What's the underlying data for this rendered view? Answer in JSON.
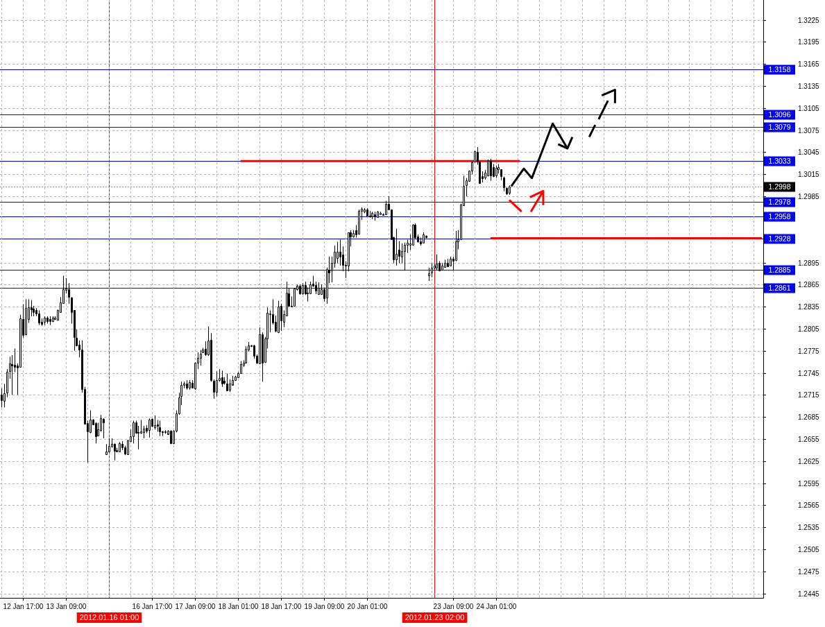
{
  "chart_data": {
    "type": "candlestick",
    "categories": [
      null,
      null,
      null,
      null,
      null,
      null,
      null,
      null,
      "12 Jan 17:00",
      null,
      null,
      null,
      null,
      null,
      null,
      null,
      null,
      null,
      null,
      null,
      null,
      null,
      null,
      null,
      "13 Jan 09:00",
      null,
      null,
      null,
      null,
      null,
      null,
      null,
      null,
      null,
      null,
      null,
      null,
      null,
      null,
      null,
      "2012.01.16 01:00",
      null,
      null,
      null,
      null,
      null,
      null,
      null,
      null,
      null,
      null,
      null,
      null,
      null,
      null,
      null,
      "16 Jan 17:00",
      null,
      null,
      null,
      null,
      null,
      null,
      null,
      null,
      null,
      null,
      null,
      null,
      null,
      null,
      null,
      "17 Jan 09:00",
      null,
      null,
      null,
      null,
      null,
      null,
      null,
      null,
      null,
      null,
      null,
      null,
      null,
      null,
      null,
      "18 Jan 01:00",
      null,
      null,
      null,
      null,
      null,
      null,
      null,
      null,
      null,
      null,
      null,
      null,
      null,
      null,
      null,
      "18 Jan 17:00",
      null,
      null,
      null,
      null,
      null,
      null,
      null,
      null,
      null,
      null,
      null,
      null,
      null,
      null,
      null,
      "19 Jan 09:00",
      null,
      null,
      null,
      null,
      null,
      null,
      null,
      null,
      null,
      null,
      null,
      null,
      null,
      null,
      null,
      "20 Jan 01:00",
      null,
      null,
      null,
      null,
      null,
      null,
      null,
      null,
      null,
      null,
      null,
      null,
      null,
      null,
      null,
      null,
      null,
      null,
      null,
      null,
      null,
      null,
      null,
      null,
      "2012.01.23 02:00",
      null,
      null,
      null,
      null,
      null,
      null,
      "23 Jan 09:00",
      null,
      null,
      null,
      null,
      null,
      null,
      null,
      null,
      null,
      null,
      null,
      null,
      null,
      null,
      null,
      "24 Jan 01:00",
      null,
      null,
      null,
      null,
      null,
      null,
      null,
      null,
      null,
      null,
      null,
      null,
      null,
      null,
      null,
      null,
      null,
      null,
      null,
      null,
      null,
      null,
      null,
      null,
      null,
      null,
      null,
      null,
      null,
      null,
      null,
      null,
      null,
      null,
      null,
      null,
      null,
      null,
      null,
      null,
      null,
      null,
      null,
      null,
      null,
      null,
      null,
      null,
      null,
      null,
      null,
      null,
      null,
      null,
      null,
      null,
      null,
      null,
      null,
      null,
      null,
      null,
      null,
      null,
      null,
      null,
      null,
      null,
      null,
      null,
      null,
      null,
      null,
      null,
      null,
      null,
      null,
      null,
      null,
      null,
      null,
      null,
      null,
      null,
      null,
      null,
      null,
      null,
      null,
      null,
      null,
      null,
      null,
      null,
      null,
      null,
      null,
      null,
      null
    ],
    "ohlc": [
      [
        1.2715,
        1.2724,
        1.2698,
        1.2708
      ],
      [
        1.2707,
        1.273,
        1.2698,
        1.2717
      ],
      [
        1.2718,
        1.275,
        1.2712,
        1.2746
      ],
      [
        1.2747,
        1.2767,
        1.2737,
        1.2758
      ],
      [
        1.2757,
        1.2769,
        1.2715,
        1.2755
      ],
      [
        1.2756,
        1.2778,
        1.2746,
        1.2753
      ],
      [
        1.2755,
        1.2758,
        1.2715,
        1.2752
      ],
      [
        1.2753,
        1.2824,
        1.2752,
        1.2819
      ],
      [
        1.2818,
        1.2838,
        1.2793,
        1.2796
      ],
      [
        1.2797,
        1.2845,
        1.2796,
        1.2833
      ],
      [
        1.2818,
        1.2845,
        1.2813,
        1.2834
      ],
      [
        1.2834,
        1.2844,
        1.2822,
        1.2831
      ],
      [
        1.2832,
        1.2836,
        1.2822,
        1.2828
      ],
      [
        1.283,
        1.2833,
        1.2822,
        1.2826
      ],
      [
        1.2826,
        1.283,
        1.281,
        1.2813
      ],
      [
        1.2814,
        1.2819,
        1.2809,
        1.2812
      ],
      [
        1.2814,
        1.2822,
        1.281,
        1.282
      ],
      [
        1.282,
        1.2822,
        1.2812,
        1.2815
      ],
      [
        1.2818,
        1.2822,
        1.281,
        1.2815
      ],
      [
        1.2815,
        1.2822,
        1.2814,
        1.282
      ],
      [
        1.2818,
        1.2822,
        1.2817,
        1.282
      ],
      [
        1.2817,
        1.2831,
        1.2816,
        1.283
      ],
      [
        1.2828,
        1.2848,
        1.2827,
        1.2841
      ],
      [
        1.284,
        1.2877,
        1.2839,
        1.2859
      ],
      [
        1.2858,
        1.2874,
        1.2853,
        1.286
      ],
      [
        1.2859,
        1.2867,
        1.2839,
        1.2848
      ],
      [
        1.2847,
        1.2848,
        1.2812,
        1.2828
      ],
      [
        1.283,
        1.283,
        1.2775,
        1.2794
      ],
      [
        1.2793,
        1.2804,
        1.2781,
        1.2782
      ],
      [
        1.2783,
        1.2789,
        1.2766,
        1.2777
      ],
      [
        1.2777,
        1.2789,
        1.2718,
        1.2723
      ],
      [
        1.2723,
        1.2726,
        1.2675,
        1.2676
      ],
      [
        1.2677,
        1.268,
        1.2623,
        1.2665
      ],
      [
        1.2664,
        1.2694,
        1.2663,
        1.2681
      ],
      [
        1.2681,
        1.2682,
        1.2674,
        1.2675
      ],
      [
        1.2677,
        1.2678,
        1.2649,
        1.2659
      ],
      [
        1.266,
        1.2677,
        1.2659,
        1.2668
      ],
      [
        1.2667,
        1.2688,
        1.2665,
        1.2683
      ],
      [
        1.2682,
        1.2683,
        1.2656,
        1.2678
      ],
      [
        1.2634,
        1.2648,
        1.2634,
        1.2638
      ],
      [
        1.2638,
        1.2656,
        1.2637,
        1.2646
      ],
      [
        1.2646,
        1.2656,
        1.2643,
        1.2648
      ],
      [
        1.2648,
        1.2649,
        1.2626,
        1.2639
      ],
      [
        1.264,
        1.2643,
        1.2637,
        1.2638
      ],
      [
        1.2638,
        1.2651,
        1.2637,
        1.2649
      ],
      [
        1.2648,
        1.2652,
        1.264,
        1.2644
      ],
      [
        1.2644,
        1.2646,
        1.2633,
        1.2635
      ],
      [
        1.2634,
        1.2654,
        1.2634,
        1.2653
      ],
      [
        1.2652,
        1.2668,
        1.2651,
        1.2659
      ],
      [
        1.2659,
        1.268,
        1.2649,
        1.2678
      ],
      [
        1.2678,
        1.268,
        1.2662,
        1.2663
      ],
      [
        1.2664,
        1.2673,
        1.2641,
        1.2663
      ],
      [
        1.2663,
        1.2681,
        1.2662,
        1.2665
      ],
      [
        1.2664,
        1.2673,
        1.2656,
        1.2669
      ],
      [
        1.267,
        1.2674,
        1.2663,
        1.2666
      ],
      [
        1.2667,
        1.2683,
        1.2657,
        1.2681
      ],
      [
        1.2682,
        1.2683,
        1.2671,
        1.2673
      ],
      [
        1.2671,
        1.2687,
        1.2668,
        1.2674
      ],
      [
        1.2675,
        1.2681,
        1.2665,
        1.2673
      ],
      [
        1.2671,
        1.268,
        1.2659,
        1.2665
      ],
      [
        1.2665,
        1.2666,
        1.2659,
        1.2664
      ],
      [
        1.2664,
        1.2667,
        1.2662,
        1.2665
      ],
      [
        1.2662,
        1.2667,
        1.2662,
        1.2666
      ],
      [
        1.2666,
        1.2667,
        1.2648,
        1.2649
      ],
      [
        1.2649,
        1.2667,
        1.2648,
        1.2666
      ],
      [
        1.2666,
        1.2694,
        1.2664,
        1.269
      ],
      [
        1.269,
        1.2718,
        1.2688,
        1.2712
      ],
      [
        1.2713,
        1.2733,
        1.2701,
        1.2729
      ],
      [
        1.2729,
        1.2733,
        1.2724,
        1.273
      ],
      [
        1.273,
        1.2735,
        1.2722,
        1.2725
      ],
      [
        1.2725,
        1.2735,
        1.2722,
        1.2732
      ],
      [
        1.2731,
        1.2735,
        1.2724,
        1.2725
      ],
      [
        1.2724,
        1.2759,
        1.2722,
        1.2759
      ],
      [
        1.2759,
        1.2773,
        1.275,
        1.2765
      ],
      [
        1.2765,
        1.2776,
        1.2755,
        1.2771
      ],
      [
        1.2773,
        1.2779,
        1.2772,
        1.2777
      ],
      [
        1.2778,
        1.2788,
        1.2768,
        1.277
      ],
      [
        1.277,
        1.2808,
        1.2768,
        1.2789
      ],
      [
        1.279,
        1.2799,
        1.2733,
        1.2735
      ],
      [
        1.2734,
        1.2736,
        1.271,
        1.2719
      ],
      [
        1.2719,
        1.2747,
        1.2713,
        1.2735
      ],
      [
        1.2735,
        1.275,
        1.2733,
        1.2738
      ],
      [
        1.2739,
        1.2748,
        1.2726,
        1.273
      ],
      [
        1.2734,
        1.2739,
        1.2729,
        1.2731
      ],
      [
        1.273,
        1.2744,
        1.272,
        1.2721
      ],
      [
        1.2722,
        1.2736,
        1.2719,
        1.273
      ],
      [
        1.2729,
        1.2741,
        1.2729,
        1.2735
      ],
      [
        1.2735,
        1.2741,
        1.2734,
        1.274
      ],
      [
        1.2739,
        1.2746,
        1.2738,
        1.2745
      ],
      [
        1.2745,
        1.2761,
        1.2744,
        1.2757
      ],
      [
        1.2756,
        1.2762,
        1.2753,
        1.2759
      ],
      [
        1.2759,
        1.2781,
        1.2759,
        1.2778
      ],
      [
        1.2777,
        1.2787,
        1.2774,
        1.2782
      ],
      [
        1.2781,
        1.2783,
        1.278,
        1.2782
      ],
      [
        1.2782,
        1.2783,
        1.2764,
        1.2768
      ],
      [
        1.2768,
        1.277,
        1.2757,
        1.2759
      ],
      [
        1.2758,
        1.2807,
        1.2757,
        1.2797
      ],
      [
        1.2797,
        1.28,
        1.2733,
        1.2759
      ],
      [
        1.276,
        1.2794,
        1.2759,
        1.2792
      ],
      [
        1.2792,
        1.2834,
        1.2778,
        1.2827
      ],
      [
        1.2825,
        1.283,
        1.28,
        1.2826
      ],
      [
        1.2825,
        1.2845,
        1.2811,
        1.2813
      ],
      [
        1.2814,
        1.2823,
        1.28,
        1.2802
      ],
      [
        1.28,
        1.2843,
        1.2799,
        1.2835
      ],
      [
        1.2836,
        1.2839,
        1.2802,
        1.2816
      ],
      [
        1.2814,
        1.283,
        1.2807,
        1.2825
      ],
      [
        1.2823,
        1.2869,
        1.2822,
        1.2854
      ],
      [
        1.2853,
        1.286,
        1.2835,
        1.2836
      ],
      [
        1.2836,
        1.2849,
        1.2834,
        1.2835
      ],
      [
        1.2836,
        1.286,
        1.2835,
        1.286
      ],
      [
        1.2859,
        1.2865,
        1.2857,
        1.2863
      ],
      [
        1.2863,
        1.2865,
        1.2851,
        1.2853
      ],
      [
        1.2853,
        1.2867,
        1.2851,
        1.2864
      ],
      [
        1.2864,
        1.2869,
        1.2851,
        1.2853
      ],
      [
        1.2854,
        1.2861,
        1.2842,
        1.2853
      ],
      [
        1.2853,
        1.2869,
        1.2852,
        1.2865
      ],
      [
        1.2866,
        1.2877,
        1.2862,
        1.2863
      ],
      [
        1.2864,
        1.2869,
        1.2852,
        1.2857
      ],
      [
        1.2852,
        1.2868,
        1.2851,
        1.2861
      ],
      [
        1.2852,
        1.2865,
        1.2851,
        1.2859
      ],
      [
        1.2859,
        1.2861,
        1.2842,
        1.2846
      ],
      [
        1.2847,
        1.2888,
        1.2839,
        1.2886
      ],
      [
        1.2885,
        1.2903,
        1.2867,
        1.2881
      ],
      [
        1.2884,
        1.2903,
        1.2868,
        1.2895
      ],
      [
        1.2895,
        1.2918,
        1.2888,
        1.291
      ],
      [
        1.2901,
        1.2923,
        1.2894,
        1.291
      ],
      [
        1.291,
        1.2926,
        1.2891,
        1.2903
      ],
      [
        1.2906,
        1.2917,
        1.2883,
        1.2892
      ],
      [
        1.2892,
        1.2897,
        1.2874,
        1.2891
      ],
      [
        1.2891,
        1.2936,
        1.2883,
        1.2936
      ],
      [
        1.2936,
        1.2939,
        1.2917,
        1.293
      ],
      [
        1.293,
        1.2939,
        1.2929,
        1.2935
      ],
      [
        1.2939,
        1.2946,
        1.2929,
        1.2933
      ],
      [
        1.2934,
        1.2967,
        1.2933,
        1.2965
      ],
      [
        1.2965,
        1.297,
        1.2953,
        1.2968
      ],
      [
        1.2964,
        1.2969,
        1.2962,
        1.2967
      ],
      [
        1.2967,
        1.2969,
        1.2958,
        1.2959
      ],
      [
        1.2959,
        1.2965,
        1.2956,
        1.2958
      ],
      [
        1.2958,
        1.2964,
        1.2954,
        1.2962
      ],
      [
        1.2961,
        1.2964,
        1.2952,
        1.2958
      ],
      [
        1.2957,
        1.2965,
        1.2956,
        1.2964
      ],
      [
        1.2961,
        1.2964,
        1.296,
        1.2962
      ],
      [
        1.2961,
        1.2962,
        1.2959,
        1.296
      ],
      [
        1.2961,
        1.2979,
        1.296,
        1.2975
      ],
      [
        1.2975,
        1.2985,
        1.2966,
        1.2967
      ],
      [
        1.2967,
        1.2967,
        1.2926,
        1.2927
      ],
      [
        1.2929,
        1.293,
        1.2894,
        1.2899
      ],
      [
        1.2899,
        1.2941,
        1.2891,
        1.2907
      ],
      [
        1.2912,
        1.2924,
        1.2894,
        1.2904
      ],
      [
        1.2903,
        1.2921,
        1.2894,
        1.2911
      ],
      [
        1.2911,
        1.2922,
        1.2884,
        1.2919
      ],
      [
        1.2919,
        1.2926,
        1.2908,
        1.2922
      ],
      [
        1.2919,
        1.2933,
        1.2912,
        1.2921
      ],
      [
        1.2919,
        1.2947,
        1.2918,
        1.2946
      ],
      [
        1.2946,
        1.2948,
        1.2927,
        1.2929
      ],
      [
        1.293,
        1.2933,
        1.2922,
        1.2924
      ],
      [
        1.2924,
        1.2929,
        1.2918,
        1.2921
      ],
      [
        1.2922,
        1.2936,
        1.2921,
        1.2933
      ],
      [
        1.2931,
        1.2932,
        1.2928,
        1.2929
      ],
      [
        1.2878,
        1.2888,
        1.287,
        1.288
      ],
      [
        1.2881,
        1.2894,
        1.2875,
        1.2888
      ],
      [
        1.2888,
        1.2894,
        1.2885,
        1.2891
      ],
      [
        1.2888,
        1.2906,
        1.2885,
        1.2894
      ],
      [
        1.2895,
        1.2897,
        1.2883,
        1.2884
      ],
      [
        1.2885,
        1.2894,
        1.2884,
        1.2891
      ],
      [
        1.2889,
        1.2899,
        1.2888,
        1.2895
      ],
      [
        1.2895,
        1.29,
        1.2889,
        1.289
      ],
      [
        1.2891,
        1.2903,
        1.289,
        1.29
      ],
      [
        1.29,
        1.2903,
        1.2884,
        1.2897
      ],
      [
        1.2898,
        1.2938,
        1.2897,
        1.2924
      ],
      [
        1.2924,
        1.2939,
        1.2913,
        1.2927
      ],
      [
        1.2927,
        1.2975,
        1.2926,
        1.2974
      ],
      [
        1.2973,
        1.3013,
        1.2973,
        1.2999
      ],
      [
        1.3,
        1.301,
        1.2985,
        1.3007
      ],
      [
        1.3006,
        1.302,
        1.3006,
        1.302
      ],
      [
        1.302,
        1.3033,
        1.3015,
        1.3031
      ],
      [
        1.3032,
        1.3047,
        1.3031,
        1.3046
      ],
      [
        1.3045,
        1.3052,
        1.3028,
        1.3032
      ],
      [
        1.3032,
        1.3033,
        1.3002,
        1.3003
      ],
      [
        1.3012,
        1.3019,
        1.3004,
        1.301
      ],
      [
        1.3011,
        1.3021,
        1.3008,
        1.3017
      ],
      [
        1.3013,
        1.3035,
        1.3012,
        1.3033
      ],
      [
        1.3033,
        1.3036,
        1.3006,
        1.3013
      ],
      [
        1.3025,
        1.3029,
        1.3011,
        1.3012
      ],
      [
        1.3013,
        1.3027,
        1.301,
        1.3024
      ],
      [
        1.3022,
        1.3029,
        1.3016,
        1.3025
      ],
      [
        1.3022,
        1.3022,
        1.3007,
        1.3012
      ],
      [
        1.3011,
        1.3012,
        1.2992,
        1.2997
      ],
      [
        1.2996,
        1.2997,
        1.2987,
        1.2989
      ],
      [
        1.299,
        1.3,
        1.2987,
        1.2998
      ],
      null,
      null,
      null,
      null,
      null,
      null,
      null,
      null,
      null,
      null,
      null,
      null,
      null,
      null,
      null,
      null,
      null,
      null,
      null,
      null,
      null,
      null,
      null,
      null,
      null,
      null,
      null,
      null,
      null,
      null,
      null,
      null,
      null,
      null,
      null,
      null,
      null,
      null,
      null,
      null,
      null,
      null,
      null,
      null,
      null,
      null,
      null,
      null,
      null,
      null,
      null,
      null,
      null,
      null,
      null,
      null,
      null,
      null,
      null,
      null,
      null,
      null,
      null,
      null,
      null,
      null,
      null,
      null,
      null,
      null,
      null,
      null,
      null,
      null,
      null,
      null,
      null,
      null,
      null,
      null,
      null,
      null,
      null,
      null,
      null,
      null,
      null,
      null,
      null,
      null,
      null,
      null,
      null,
      null
    ],
    "series": [
      {
        "type": "line",
        "color": "#ff0000",
        "values": [
          null,
          null,
          null,
          null,
          null,
          null,
          null,
          null,
          null,
          null,
          null,
          null,
          null,
          null,
          null,
          null,
          null,
          null,
          null,
          null,
          null,
          null,
          null,
          null,
          null,
          null,
          null,
          null,
          null,
          null,
          null,
          null,
          null,
          null,
          null,
          null,
          null,
          null,
          null,
          null,
          null,
          null,
          null,
          null,
          null,
          null,
          null,
          null,
          null,
          null,
          null,
          null,
          null,
          null,
          null,
          null,
          null,
          null,
          null,
          null,
          null,
          null,
          null,
          null,
          null,
          null,
          null,
          null,
          null,
          null,
          null,
          null,
          null,
          null,
          null,
          null,
          null,
          null,
          null,
          null,
          null,
          null,
          null,
          null,
          null,
          null,
          null,
          null,
          null,
          1.3033,
          1.3033,
          1.3033,
          1.3033,
          1.3033,
          1.3033,
          1.3033,
          1.3033,
          1.3033,
          1.3033,
          1.3033,
          1.3033,
          1.3033,
          1.3033,
          1.3033,
          1.3033,
          1.3033,
          1.3033,
          1.3033,
          1.3033,
          1.3033,
          1.3033,
          1.3033,
          1.3033,
          1.3033,
          1.3033,
          1.3033,
          1.3033,
          1.3033,
          1.3033,
          1.3033,
          1.3033,
          1.3033,
          1.3033,
          1.3033,
          1.3033,
          1.3033,
          1.3033,
          1.3033,
          1.3033,
          1.3033,
          1.3033,
          1.3033,
          1.3033,
          1.3033,
          1.3033,
          1.3033,
          1.3033,
          1.3033,
          1.3033,
          1.3033,
          1.3033,
          1.3033,
          1.3033,
          1.3033,
          1.3033,
          1.3033,
          1.3033,
          1.3033,
          1.3033,
          1.3033,
          1.3033,
          1.3033,
          1.3033,
          1.3033,
          1.3033,
          1.3033,
          1.3033,
          1.3033,
          1.3033,
          1.3033,
          1.3033,
          1.3033,
          1.3033,
          1.3033,
          1.3033,
          1.3033,
          1.3033,
          1.3033,
          1.3033,
          1.3033,
          1.3033,
          1.3033,
          1.3033,
          1.3033,
          1.3033,
          1.3033,
          1.3033,
          1.3033,
          1.3033,
          1.3033,
          1.3033,
          1.3033,
          1.3033,
          1.3033,
          1.3033,
          1.3033,
          1.3033,
          1.3033,
          1.3033,
          1.3033,
          1.3033,
          1.3033,
          1.3033,
          1.3033,
          null,
          null,
          null,
          null,
          null,
          null,
          null,
          null,
          null,
          null,
          null,
          null,
          null,
          null,
          null,
          null,
          null,
          null,
          null,
          null,
          null,
          null,
          null,
          null,
          null,
          null,
          null,
          null,
          null,
          null,
          null,
          null,
          null,
          null,
          null,
          null,
          null,
          null,
          null,
          null,
          null,
          null,
          null,
          null,
          null,
          null,
          null,
          null,
          null,
          null,
          null,
          null,
          null,
          null,
          null,
          null,
          null,
          null,
          null,
          null,
          null,
          null,
          null,
          null,
          null,
          null,
          null,
          null,
          null,
          null,
          null,
          null,
          null,
          null,
          null,
          null,
          null,
          null,
          null,
          null,
          null,
          null,
          null,
          null,
          null,
          null,
          null,
          null,
          null,
          null
        ]
      },
      {
        "type": "line",
        "color": "#ff0000",
        "values": [
          null,
          null,
          null,
          null,
          null,
          null,
          null,
          null,
          null,
          null,
          null,
          null,
          null,
          null,
          null,
          null,
          null,
          null,
          null,
          null,
          null,
          null,
          null,
          null,
          null,
          null,
          null,
          null,
          null,
          null,
          null,
          null,
          null,
          null,
          null,
          null,
          null,
          null,
          null,
          null,
          null,
          null,
          null,
          null,
          null,
          null,
          null,
          null,
          null,
          null,
          null,
          null,
          null,
          null,
          null,
          null,
          null,
          null,
          null,
          null,
          null,
          null,
          null,
          null,
          null,
          null,
          null,
          null,
          null,
          null,
          null,
          null,
          null,
          null,
          null,
          null,
          null,
          null,
          null,
          null,
          null,
          null,
          null,
          null,
          null,
          null,
          null,
          null,
          null,
          null,
          null,
          null,
          null,
          null,
          null,
          null,
          null,
          null,
          null,
          null,
          null,
          null,
          null,
          null,
          null,
          null,
          null,
          null,
          null,
          null,
          null,
          null,
          null,
          null,
          null,
          null,
          null,
          null,
          null,
          null,
          null,
          null,
          null,
          null,
          null,
          null,
          null,
          null,
          null,
          null,
          null,
          null,
          null,
          null,
          null,
          null,
          null,
          null,
          null,
          null,
          null,
          null,
          null,
          null,
          null,
          null,
          null,
          null,
          null,
          null,
          null,
          null,
          null,
          null,
          null,
          null,
          null,
          null,
          null,
          null,
          null,
          null,
          null,
          null,
          null,
          null,
          null,
          null,
          null,
          null,
          null,
          null,
          null,
          null,
          null,
          null,
          null,
          null,
          null,
          null,
          null,
          null,
          1.2928,
          1.2928,
          1.2928,
          1.2928,
          1.2928,
          1.2928,
          1.2928,
          1.2928,
          1.2928,
          1.2928,
          1.2928,
          1.2928,
          1.2928,
          1.2928,
          1.2928,
          1.2928,
          1.2928,
          1.2928,
          1.2928,
          1.2928,
          1.2928,
          1.2928,
          1.2928,
          1.2928,
          1.2928,
          1.2928,
          1.2928,
          1.2928,
          1.2928,
          1.2928,
          1.2928,
          1.2928,
          1.2928,
          1.2928,
          1.2928,
          1.2928,
          1.2928,
          1.2928,
          1.2928,
          1.2928,
          1.2928,
          1.2928,
          1.2928,
          1.2928,
          1.2928,
          1.2928,
          1.2928,
          1.2928,
          1.2928,
          1.2928,
          1.2928,
          1.2928,
          1.2928,
          1.2928,
          1.2928,
          1.2928,
          1.2928,
          1.2928,
          1.2928,
          1.2928,
          1.2928,
          1.2928,
          1.2928,
          1.2928,
          1.2928,
          1.2928,
          1.2928,
          1.2928,
          1.2928,
          1.2928,
          1.2928,
          1.2928,
          1.2928,
          1.2928,
          1.2928,
          1.2928,
          1.2928,
          1.2928,
          1.2928,
          1.2928,
          1.2928,
          1.2928,
          1.2928,
          1.2928,
          1.2928,
          1.2928,
          1.2928,
          1.2928,
          1.2928,
          1.2928,
          1.2928,
          1.2928,
          1.2928,
          1.2928,
          1.2928,
          1.2928,
          1.2928,
          1.2928,
          1.2928,
          1.2928,
          1.2928,
          1.2928
        ]
      }
    ],
    "ylim": [
      1.2439,
      1.3252
    ],
    "yticks": [
      1.3225,
      1.3195,
      1.3165,
      1.3135,
      1.3105,
      1.3075,
      1.3045,
      1.3015,
      1.2985,
      1.2895,
      1.2865,
      1.2835,
      1.2805,
      1.2775,
      1.2745,
      1.2715,
      1.2685,
      1.2655,
      1.2625,
      1.2595,
      1.2565,
      1.2535,
      1.2505,
      1.2475,
      1.2445
    ],
    "grid": true,
    "ref_lines": [
      {
        "axis": "y",
        "value": 1.3158,
        "label": "1.3158",
        "color": "#0000ff"
      },
      {
        "axis": "y",
        "value": 1.3096,
        "label": "1.3096",
        "color": "#0000ff"
      },
      {
        "axis": "y",
        "value": 1.3079,
        "label": "1.3079",
        "color": "#0000ff"
      },
      {
        "axis": "y",
        "value": 1.3033,
        "label": "1.3033",
        "color": "#0000ff"
      },
      {
        "axis": "y",
        "value": 1.2998,
        "label": "1.2998",
        "color": "#a0a0a0",
        "line_style": "dotted"
      },
      {
        "axis": "y",
        "value": 1.2978,
        "label": "1.2978",
        "color": "#0000ff"
      },
      {
        "axis": "y",
        "value": 1.2958,
        "label": "1.2958",
        "color": "#0000ff"
      },
      {
        "axis": "y",
        "value": 1.2928,
        "label": "1.2928",
        "color": "#0000ff"
      },
      {
        "axis": "y",
        "value": 1.2885,
        "label": "1.2885",
        "color": "#0000ff"
      },
      {
        "axis": "y",
        "value": 1.2861,
        "label": "1.2861",
        "color": "#0000ff"
      },
      {
        "axis": "x",
        "value": "2012.01.16 01:00",
        "color": "#ff0000"
      },
      {
        "axis": "x",
        "value": "2012.01.23 02:00",
        "color": "#ff0000"
      }
    ]
  }
}
